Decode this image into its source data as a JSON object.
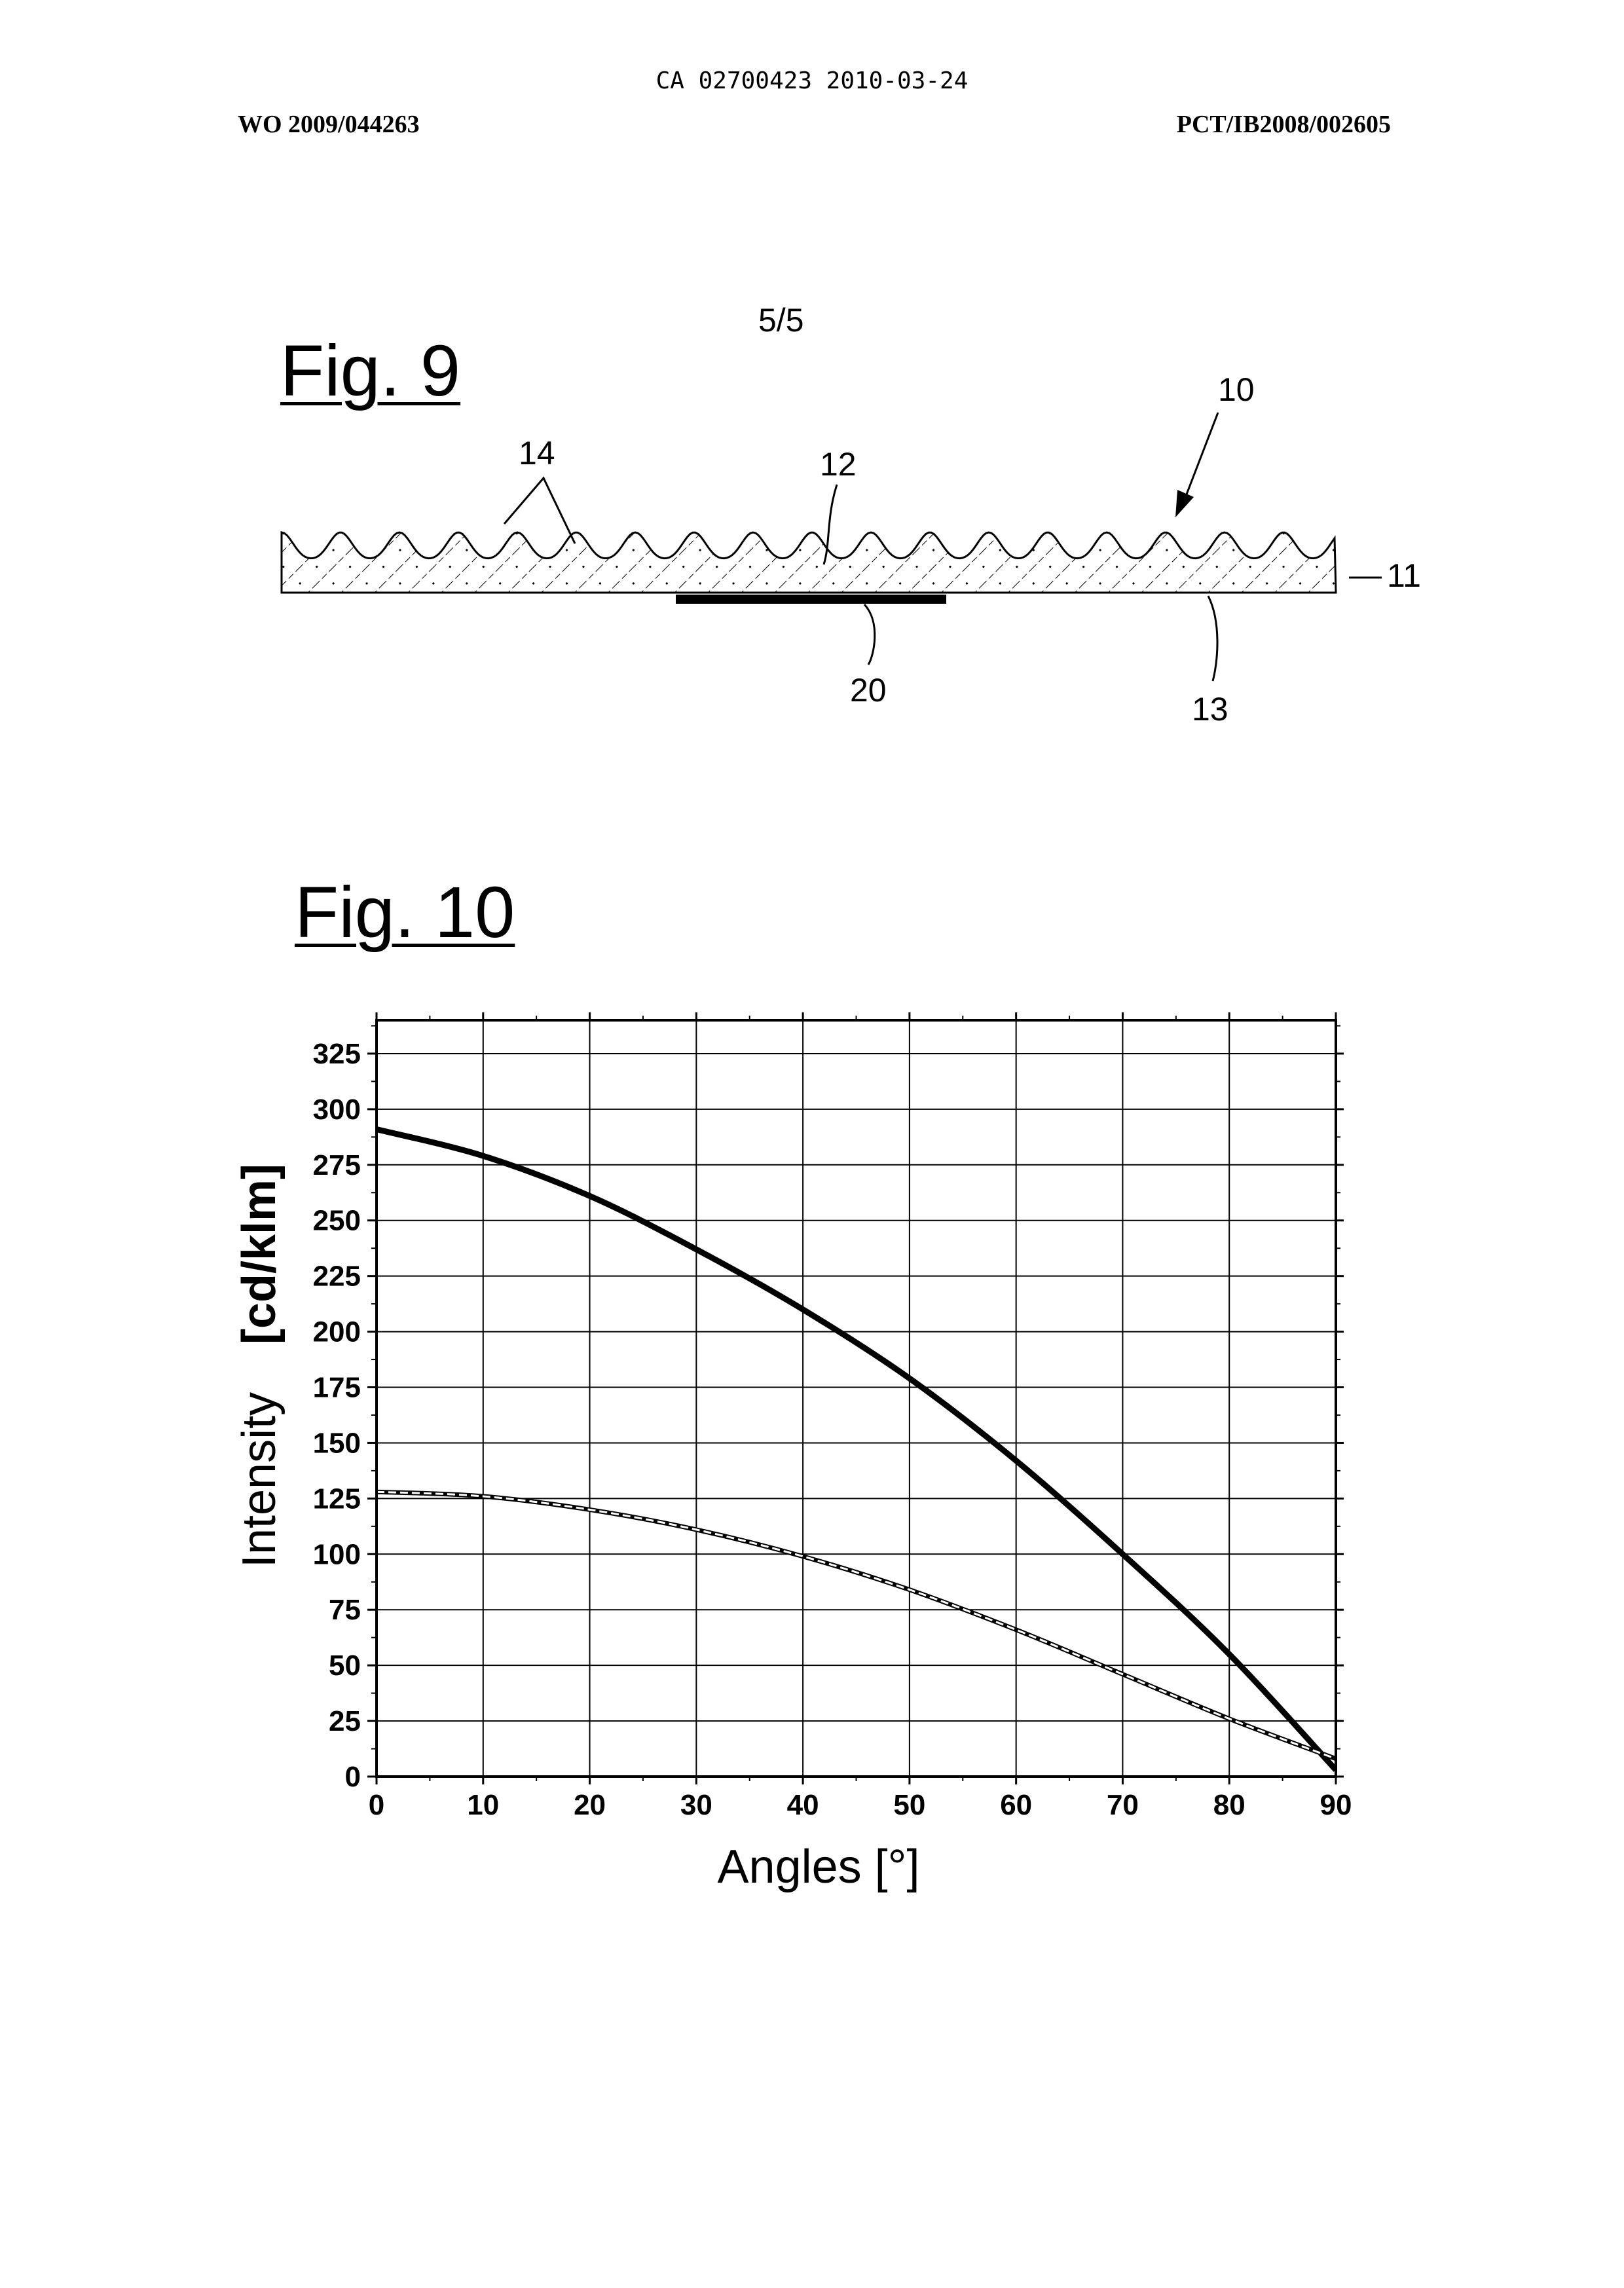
{
  "header": {
    "ca_line": "CA 02700423 2010-03-24",
    "wo_number": "WO 2009/044263",
    "pct_number": "PCT/IB2008/002605"
  },
  "page_number": "5/5",
  "fig9": {
    "title": "Fig. 9",
    "labels": {
      "l10": "10",
      "l14": "14",
      "l12": "12",
      "l11": "11",
      "l20": "20",
      "l13": "13"
    }
  },
  "fig10": {
    "title": "Fig. 10"
  },
  "chart_data": {
    "type": "line",
    "xlabel": "Angles [°]",
    "ylabel_left": "Intensity",
    "ylabel_right": "[cd/klm]",
    "xlim": [
      0,
      90
    ],
    "ylim": [
      0,
      340
    ],
    "xticks": [
      0,
      10,
      20,
      30,
      40,
      50,
      60,
      70,
      80,
      90
    ],
    "yticks": [
      0,
      25,
      50,
      75,
      100,
      125,
      150,
      175,
      200,
      225,
      250,
      275,
      300,
      325
    ],
    "grid": true,
    "series": [
      {
        "style": "solid-thick",
        "x": [
          0,
          10,
          20,
          30,
          40,
          50,
          60,
          70,
          80,
          90
        ],
        "y": [
          291,
          279,
          261,
          237,
          210,
          179,
          142,
          100,
          55,
          3
        ]
      },
      {
        "style": "dashed",
        "x": [
          0,
          10,
          20,
          30,
          40,
          50,
          60,
          70,
          80,
          90
        ],
        "y": [
          128,
          126,
          120,
          111,
          99,
          84,
          66,
          46,
          26,
          8
        ]
      }
    ]
  }
}
